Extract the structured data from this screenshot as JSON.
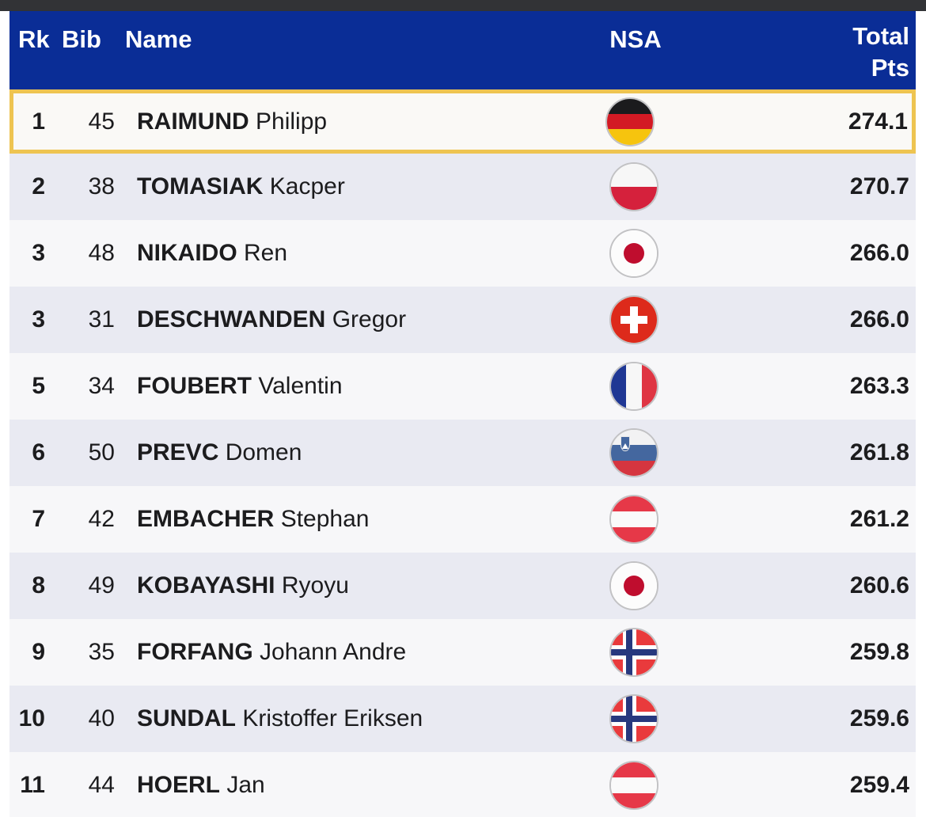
{
  "table": {
    "columns": {
      "rk": "Rk",
      "bib": "Bib",
      "name": "Name",
      "nsa": "NSA",
      "pts_line1": "Total",
      "pts_line2": "Pts"
    },
    "rows": [
      {
        "rk": "1",
        "bib": "45",
        "last": "RAIMUND",
        "first": "Philipp",
        "nsa": "ger",
        "pts": "274.1",
        "highlighted": true
      },
      {
        "rk": "2",
        "bib": "38",
        "last": "TOMASIAK",
        "first": "Kacper",
        "nsa": "pol",
        "pts": "270.7",
        "highlighted": false
      },
      {
        "rk": "3",
        "bib": "48",
        "last": "NIKAIDO",
        "first": "Ren",
        "nsa": "jpn",
        "pts": "266.0",
        "highlighted": false
      },
      {
        "rk": "3",
        "bib": "31",
        "last": "DESCHWANDEN",
        "first": "Gregor",
        "nsa": "sui",
        "pts": "266.0",
        "highlighted": false
      },
      {
        "rk": "5",
        "bib": "34",
        "last": "FOUBERT",
        "first": "Valentin",
        "nsa": "fra",
        "pts": "263.3",
        "highlighted": false
      },
      {
        "rk": "6",
        "bib": "50",
        "last": "PREVC",
        "first": "Domen",
        "nsa": "slo",
        "pts": "261.8",
        "highlighted": false
      },
      {
        "rk": "7",
        "bib": "42",
        "last": "EMBACHER",
        "first": "Stephan",
        "nsa": "aut",
        "pts": "261.2",
        "highlighted": false
      },
      {
        "rk": "8",
        "bib": "49",
        "last": "KOBAYASHI",
        "first": "Ryoyu",
        "nsa": "jpn",
        "pts": "260.6",
        "highlighted": false
      },
      {
        "rk": "9",
        "bib": "35",
        "last": "FORFANG",
        "first": "Johann Andre",
        "nsa": "nor",
        "pts": "259.8",
        "highlighted": false
      },
      {
        "rk": "10",
        "bib": "40",
        "last": "SUNDAL",
        "first": "Kristoffer Eriksen",
        "nsa": "nor",
        "pts": "259.6",
        "highlighted": false
      },
      {
        "rk": "11",
        "bib": "44",
        "last": "HOERL",
        "first": "Jan",
        "nsa": "aut",
        "pts": "259.4",
        "highlighted": false
      }
    ],
    "flags": {
      "ger": {
        "type": "h",
        "stripes": [
          "#1b1b1d",
          "#d31a24",
          "#f6c40e"
        ]
      },
      "pol": {
        "type": "h",
        "stripes": [
          "#f7f7f7",
          "#d5213c"
        ]
      },
      "jpn": {
        "type": "disc",
        "bg": "#fcfcfc",
        "disc": "#bf0d2e"
      },
      "sui": {
        "type": "cross",
        "bg": "#dd2a1b",
        "cross": "#ffffff"
      },
      "fra": {
        "type": "v",
        "stripes": [
          "#1f3794",
          "#f7f7f7",
          "#df3543"
        ]
      },
      "slo": {
        "type": "slo",
        "stripes": [
          "#f2f2f3",
          "#44679f",
          "#d5353f"
        ],
        "shield": "#44679f"
      },
      "aut": {
        "type": "h",
        "stripes": [
          "#e63848",
          "#fafafa",
          "#e63848"
        ]
      },
      "nor": {
        "type": "nordic",
        "bg": "#e93a3c",
        "outer": "#ffffff",
        "inner": "#27387e"
      }
    },
    "colors": {
      "topbar": "#323336",
      "header_bg": "#0a2d96",
      "header_text": "#ffffff",
      "row_light": "#f7f7f9",
      "row_alt": "#e9eaf2",
      "highlight_bg": "#faf9f6",
      "highlight_border": "#eec451",
      "text": "#1c1c1e",
      "flag_ring": "#c2c2c4"
    }
  }
}
